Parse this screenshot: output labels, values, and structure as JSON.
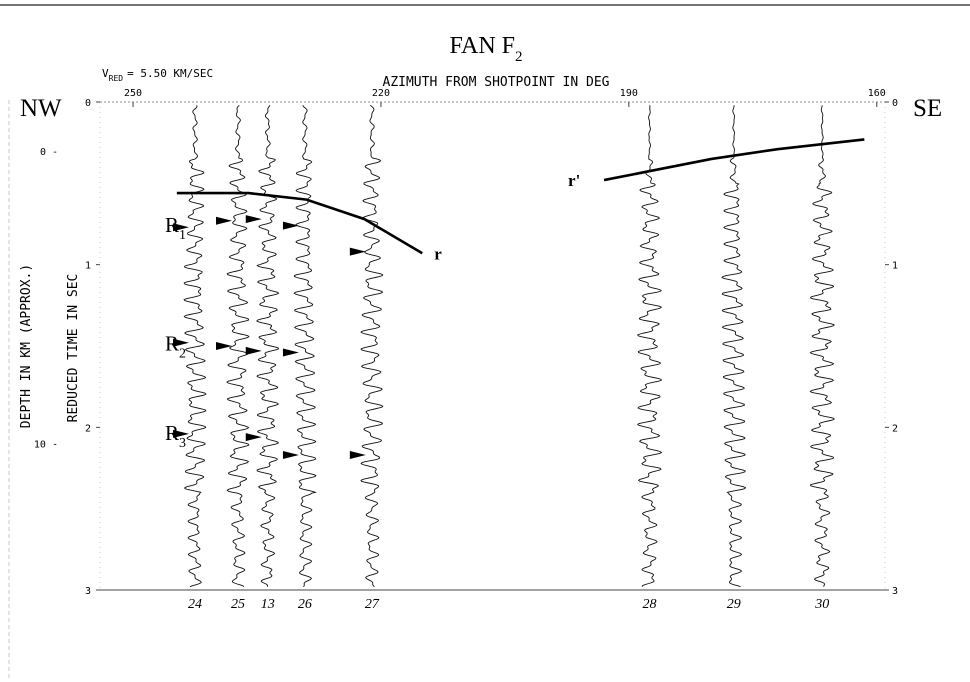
{
  "chart_data": {
    "type": "seismic-record-section",
    "title": "FAN F",
    "title_subscript": "2",
    "reduction_velocity": "V",
    "reduction_velocity_subscript": "RED",
    "reduction_velocity_value": "= 5.50 KM/SEC",
    "top_axis": {
      "label": "AZIMUTH FROM SHOTPOINT IN DEG",
      "ticks": [
        {
          "value": 250,
          "label": "250"
        },
        {
          "value": 220,
          "label": "220"
        },
        {
          "value": 190,
          "label": "190"
        },
        {
          "value": 160,
          "label": "160"
        }
      ]
    },
    "left_axis": {
      "label": "REDUCED TIME IN SEC",
      "ticks": [
        {
          "value": 0,
          "label": "0"
        },
        {
          "value": 1,
          "label": "1"
        },
        {
          "value": 2,
          "label": "2"
        },
        {
          "value": 3,
          "label": "3"
        }
      ],
      "ylim": [
        0,
        3
      ]
    },
    "right_axis": {
      "ticks": [
        {
          "value": 0,
          "label": "0"
        },
        {
          "value": 1,
          "label": "1"
        },
        {
          "value": 2,
          "label": "2"
        },
        {
          "value": 3,
          "label": "3"
        }
      ]
    },
    "depth_axis": {
      "label": "DEPTH IN KM (APPROX.)",
      "ticks": [
        {
          "time": 0.3,
          "label": "0 -"
        },
        {
          "time": 2.1,
          "label": "10 -"
        }
      ]
    },
    "direction_left": "NW",
    "direction_right": "SE",
    "xlim_azimuth": [
      254,
      159
    ],
    "traces": [
      {
        "label": "24",
        "azimuth": 242.5
      },
      {
        "label": "25",
        "azimuth": 237.3
      },
      {
        "label": "13",
        "azimuth": 233.7
      },
      {
        "label": "26",
        "azimuth": 229.2
      },
      {
        "label": "27",
        "azimuth": 221.1
      },
      {
        "label": "28",
        "azimuth": 187.5
      },
      {
        "label": "29",
        "azimuth": 177.3
      },
      {
        "label": "30",
        "azimuth": 166.6
      }
    ],
    "curves": [
      {
        "label": "r",
        "points": [
          [
            244.7,
            0.56
          ],
          [
            236,
            0.56
          ],
          [
            229,
            0.6
          ],
          [
            222,
            0.72
          ],
          [
            215,
            0.93
          ]
        ]
      },
      {
        "label": "r'",
        "points": [
          [
            193,
            0.48
          ],
          [
            187,
            0.42
          ],
          [
            180,
            0.35
          ],
          [
            172,
            0.29
          ],
          [
            161.5,
            0.23
          ]
        ]
      }
    ],
    "arrival_arrows": [
      {
        "trace": "24",
        "time": 0.77
      },
      {
        "trace": "25",
        "time": 0.73
      },
      {
        "trace": "13",
        "time": 0.72
      },
      {
        "trace": "26",
        "time": 0.76
      },
      {
        "trace": "27",
        "time": 0.92
      },
      {
        "trace": "24",
        "time": 1.48
      },
      {
        "trace": "25",
        "time": 1.5
      },
      {
        "trace": "13",
        "time": 1.53
      },
      {
        "trace": "26",
        "time": 1.54
      },
      {
        "trace": "24",
        "time": 2.04
      },
      {
        "trace": "13",
        "time": 2.06
      },
      {
        "trace": "26",
        "time": 2.17
      },
      {
        "trace": "27",
        "time": 2.17
      }
    ],
    "phase_labels": [
      {
        "label": "R",
        "subscript": "1",
        "time": 0.75
      },
      {
        "label": "R",
        "subscript": "2",
        "time": 1.48
      },
      {
        "label": "R",
        "subscript": "3",
        "time": 2.03
      }
    ]
  }
}
